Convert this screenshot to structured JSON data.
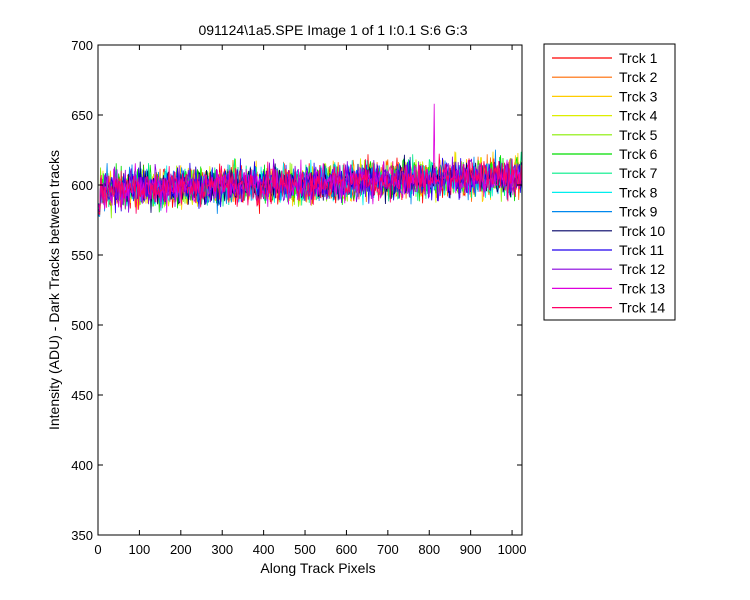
{
  "chart_data": {
    "type": "line",
    "title": "091124\\1a5.SPE  Image 1 of 1  I:0.1  S:6  G:3",
    "xlabel": "Along Track Pixels",
    "ylabel": "Intensity (ADU) - Dark Tracks between tracks",
    "xlim": [
      0,
      1024
    ],
    "ylim": [
      350,
      700
    ],
    "xticks": [
      0,
      100,
      200,
      300,
      400,
      500,
      600,
      700,
      800,
      900,
      1000
    ],
    "yticks": [
      350,
      400,
      450,
      500,
      550,
      600,
      650,
      700
    ],
    "grid": false,
    "legend_position": "outside-top-right",
    "series_model": {
      "x_range": [
        0,
        1024
      ],
      "baseline_start": 597,
      "baseline_end": 606,
      "noise_amplitude": 9,
      "max_peak": 658,
      "max_peak_x": 812
    },
    "series": [
      {
        "name": "Trck 1",
        "color": "#ff0000"
      },
      {
        "name": "Trck 2",
        "color": "#ff6a00"
      },
      {
        "name": "Trck 3",
        "color": "#ffcc00"
      },
      {
        "name": "Trck 4",
        "color": "#ddee00"
      },
      {
        "name": "Trck 5",
        "color": "#88ee00"
      },
      {
        "name": "Trck 6",
        "color": "#00dd00"
      },
      {
        "name": "Trck 7",
        "color": "#00ee88"
      },
      {
        "name": "Trck 8",
        "color": "#00eeee"
      },
      {
        "name": "Trck 9",
        "color": "#0088ee"
      },
      {
        "name": "Trck 10",
        "color": "#000066"
      },
      {
        "name": "Trck 11",
        "color": "#2200ee"
      },
      {
        "name": "Trck 12",
        "color": "#8800dd"
      },
      {
        "name": "Trck 13",
        "color": "#dd00dd"
      },
      {
        "name": "Trck 14",
        "color": "#ff0066"
      }
    ]
  }
}
